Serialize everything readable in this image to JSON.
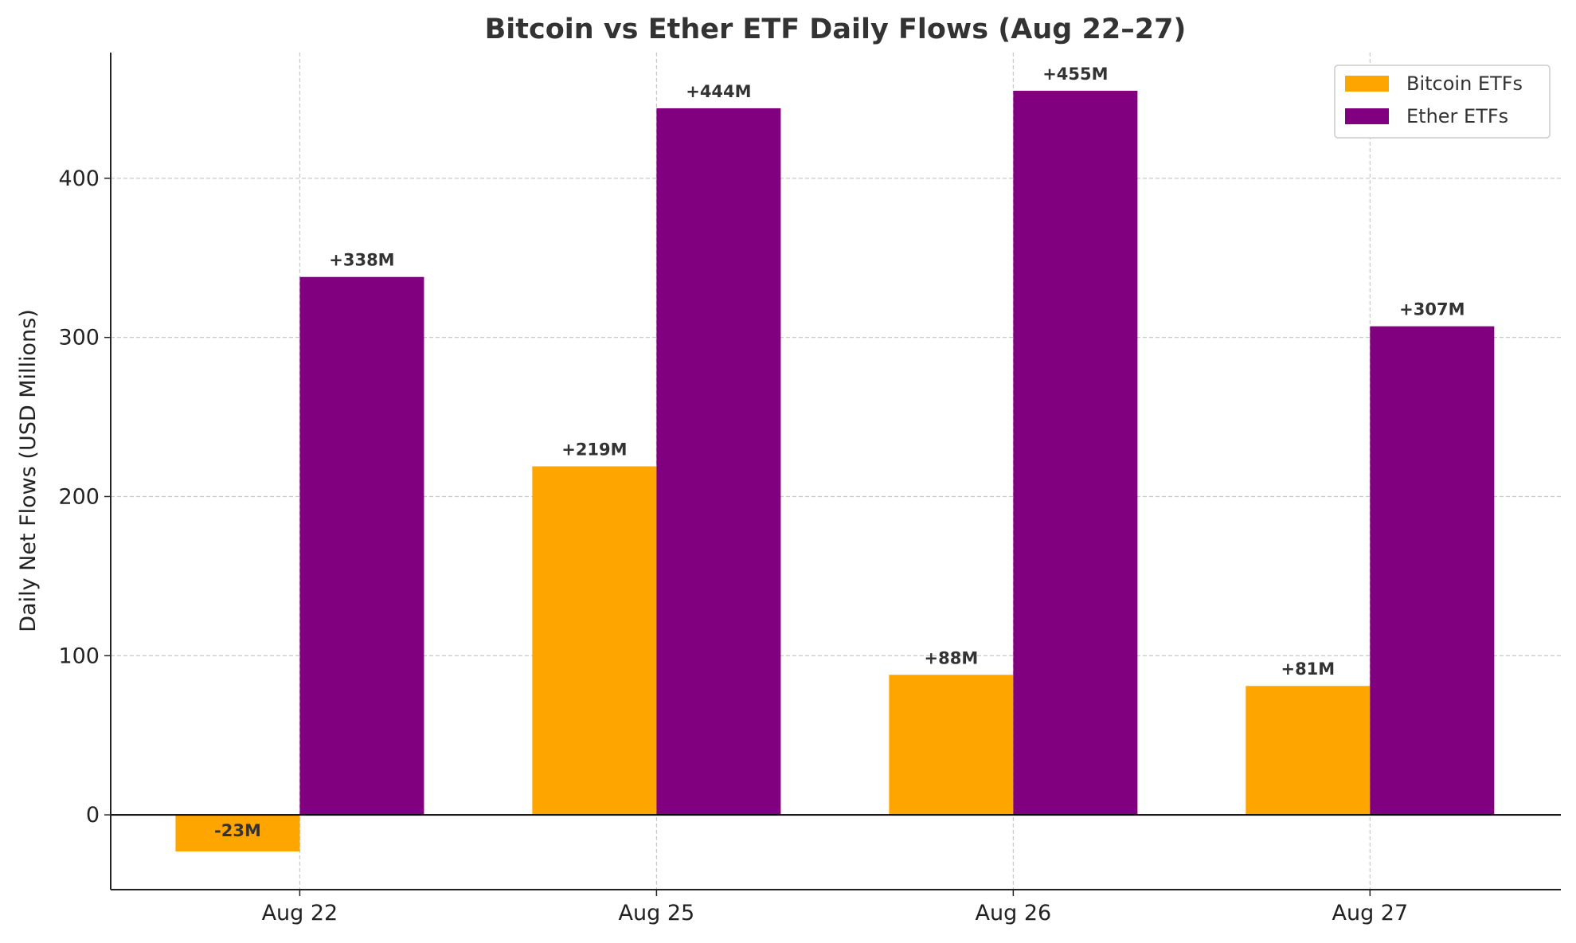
{
  "chart_data": {
    "type": "bar",
    "title": "Bitcoin vs Ether ETF Daily Flows (Aug 22–27)",
    "xlabel": "",
    "ylabel": "Daily Net Flows (USD Millions)",
    "categories": [
      "Aug 22",
      "Aug 25",
      "Aug 26",
      "Aug 27"
    ],
    "series": [
      {
        "name": "Bitcoin ETFs",
        "color": "#FFA500",
        "values": [
          -23,
          219,
          88,
          81
        ],
        "labels": [
          "-23M",
          "+219M",
          "+88M",
          "+81M"
        ]
      },
      {
        "name": "Ether ETFs",
        "color": "#800080",
        "values": [
          338,
          444,
          455,
          307
        ],
        "labels": [
          "+338M",
          "+444M",
          "+455M",
          "+307M"
        ]
      }
    ],
    "ylim": [
      -47,
      479
    ],
    "yticks": [
      0,
      100,
      200,
      300,
      400
    ],
    "grid": true,
    "legend": "top-right"
  }
}
